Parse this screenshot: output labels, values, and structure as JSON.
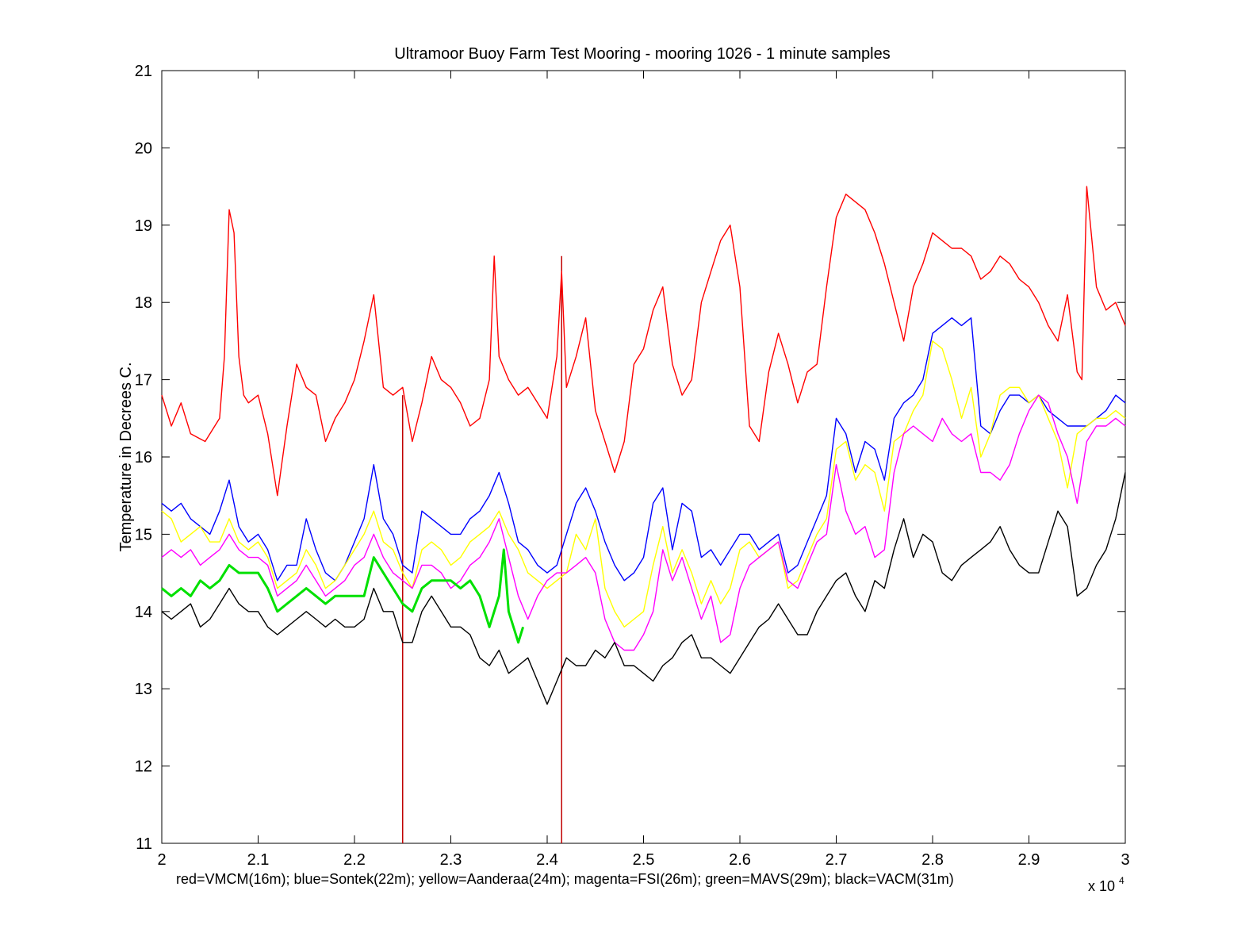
{
  "chart_data": {
    "type": "line",
    "title": "Ultramoor Buoy Farm Test Mooring - mooring 1026 - 1 minute samples",
    "ylabel": "Temperature in Decrees C.",
    "xlabel": "red=VMCM(16m); blue=Sontek(22m); yellow=Aanderaa(24m); magenta=FSI(26m); green=MAVS(29m); black=VACM(31m)",
    "x_exponent_label": "x 10",
    "x_exponent_power": "4",
    "xlim": [
      2.0,
      3.0
    ],
    "ylim": [
      11,
      21
    ],
    "xticks": [
      2.0,
      2.1,
      2.2,
      2.3,
      2.4,
      2.5,
      2.6,
      2.7,
      2.8,
      2.9,
      3.0
    ],
    "xtick_labels": [
      "2",
      "2.1",
      "2.2",
      "2.3",
      "2.4",
      "2.5",
      "2.6",
      "2.7",
      "2.8",
      "2.9",
      "3"
    ],
    "yticks": [
      11,
      12,
      13,
      14,
      15,
      16,
      17,
      18,
      19,
      20,
      21
    ],
    "ytick_labels": [
      "11",
      "12",
      "13",
      "14",
      "15",
      "16",
      "17",
      "18",
      "19",
      "20",
      "21"
    ],
    "grid": false,
    "vertical_markers": [
      {
        "x": 2.25,
        "y_range": [
          11,
          16.8
        ],
        "color": "#c00000"
      },
      {
        "x": 2.415,
        "y_range": [
          11,
          18.6
        ],
        "color": "#c00000"
      }
    ],
    "series": [
      {
        "color": "#ff0000",
        "x": [
          2.0,
          2.01,
          2.02,
          2.03,
          2.045,
          2.06,
          2.065,
          2.07,
          2.075,
          2.08,
          2.085,
          2.09,
          2.1,
          2.11,
          2.12,
          2.13,
          2.14,
          2.15,
          2.16,
          2.17,
          2.18,
          2.19,
          2.2,
          2.21,
          2.22,
          2.23,
          2.24,
          2.25,
          2.26,
          2.27,
          2.28,
          2.29,
          2.3,
          2.31,
          2.32,
          2.33,
          2.34,
          2.345,
          2.35,
          2.36,
          2.37,
          2.38,
          2.39,
          2.4,
          2.41,
          2.415,
          2.42,
          2.43,
          2.44,
          2.45,
          2.46,
          2.47,
          2.48,
          2.49,
          2.5,
          2.51,
          2.52,
          2.53,
          2.54,
          2.55,
          2.56,
          2.57,
          2.58,
          2.59,
          2.6,
          2.61,
          2.62,
          2.63,
          2.64,
          2.65,
          2.66,
          2.67,
          2.68,
          2.69,
          2.7,
          2.71,
          2.72,
          2.73,
          2.74,
          2.75,
          2.76,
          2.77,
          2.78,
          2.79,
          2.8,
          2.81,
          2.82,
          2.83,
          2.84,
          2.85,
          2.86,
          2.87,
          2.88,
          2.89,
          2.9,
          2.91,
          2.92,
          2.93,
          2.94,
          2.95,
          2.955,
          2.96,
          2.97,
          2.98,
          2.99,
          3.0
        ],
        "y": [
          16.8,
          16.4,
          16.7,
          16.3,
          16.2,
          16.5,
          17.3,
          19.2,
          18.9,
          17.3,
          16.8,
          16.7,
          16.8,
          16.3,
          15.5,
          16.4,
          17.2,
          16.9,
          16.8,
          16.2,
          16.5,
          16.7,
          17.0,
          17.5,
          18.1,
          16.9,
          16.8,
          16.9,
          16.2,
          16.7,
          17.3,
          17.0,
          16.9,
          16.7,
          16.4,
          16.5,
          17.0,
          18.6,
          17.3,
          17.0,
          16.8,
          16.9,
          16.7,
          16.5,
          17.3,
          18.4,
          16.9,
          17.3,
          17.8,
          16.6,
          16.2,
          15.8,
          16.2,
          17.2,
          17.4,
          17.9,
          18.2,
          17.2,
          16.8,
          17.0,
          18.0,
          18.4,
          18.8,
          19.0,
          18.2,
          16.4,
          16.2,
          17.1,
          17.6,
          17.2,
          16.7,
          17.1,
          17.2,
          18.2,
          19.1,
          19.4,
          19.3,
          19.2,
          18.9,
          18.5,
          18.0,
          17.5,
          18.2,
          18.5,
          18.9,
          18.8,
          18.7,
          18.7,
          18.6,
          18.3,
          18.4,
          18.6,
          18.5,
          18.3,
          18.2,
          18.0,
          17.7,
          17.5,
          18.1,
          17.1,
          17.0,
          19.5,
          18.2,
          17.9,
          18.0,
          17.7
        ]
      },
      {
        "color": "#0000ff",
        "x": [
          2.0,
          2.01,
          2.02,
          2.03,
          2.04,
          2.05,
          2.06,
          2.07,
          2.08,
          2.09,
          2.1,
          2.11,
          2.12,
          2.13,
          2.14,
          2.15,
          2.16,
          2.17,
          2.18,
          2.19,
          2.2,
          2.21,
          2.22,
          2.23,
          2.24,
          2.25,
          2.26,
          2.27,
          2.28,
          2.29,
          2.3,
          2.31,
          2.32,
          2.33,
          2.34,
          2.35,
          2.36,
          2.37,
          2.38,
          2.39,
          2.4,
          2.41,
          2.42,
          2.43,
          2.44,
          2.45,
          2.46,
          2.47,
          2.48,
          2.49,
          2.5,
          2.51,
          2.52,
          2.53,
          2.54,
          2.55,
          2.56,
          2.57,
          2.58,
          2.59,
          2.6,
          2.61,
          2.62,
          2.63,
          2.64,
          2.65,
          2.66,
          2.67,
          2.68,
          2.69,
          2.7,
          2.71,
          2.72,
          2.73,
          2.74,
          2.75,
          2.76,
          2.77,
          2.78,
          2.79,
          2.8,
          2.81,
          2.82,
          2.83,
          2.84,
          2.85,
          2.86,
          2.87,
          2.88,
          2.89,
          2.9,
          2.91,
          2.92,
          2.93,
          2.94,
          2.95,
          2.96,
          2.97,
          2.98,
          2.99,
          3.0
        ],
        "y": [
          15.4,
          15.3,
          15.4,
          15.2,
          15.1,
          15.0,
          15.3,
          15.7,
          15.1,
          14.9,
          15.0,
          14.8,
          14.4,
          14.6,
          14.6,
          15.2,
          14.8,
          14.5,
          14.4,
          14.6,
          14.9,
          15.2,
          15.9,
          15.2,
          15.0,
          14.6,
          14.5,
          15.3,
          15.2,
          15.1,
          15.0,
          15.0,
          15.2,
          15.3,
          15.5,
          15.8,
          15.4,
          14.9,
          14.8,
          14.6,
          14.5,
          14.6,
          15.0,
          15.4,
          15.6,
          15.3,
          14.9,
          14.6,
          14.4,
          14.5,
          14.7,
          15.4,
          15.6,
          14.8,
          15.4,
          15.3,
          14.7,
          14.8,
          14.6,
          14.8,
          15.0,
          15.0,
          14.8,
          14.9,
          15.0,
          14.5,
          14.6,
          14.9,
          15.2,
          15.5,
          16.5,
          16.3,
          15.8,
          16.2,
          16.1,
          15.7,
          16.5,
          16.7,
          16.8,
          17.0,
          17.6,
          17.7,
          17.8,
          17.7,
          17.8,
          16.4,
          16.3,
          16.6,
          16.8,
          16.8,
          16.7,
          16.8,
          16.6,
          16.5,
          16.4,
          16.4,
          16.4,
          16.5,
          16.6,
          16.8,
          16.7
        ]
      },
      {
        "color": "#ffff00",
        "x": [
          2.0,
          2.01,
          2.02,
          2.03,
          2.04,
          2.05,
          2.06,
          2.07,
          2.08,
          2.09,
          2.1,
          2.11,
          2.12,
          2.13,
          2.14,
          2.15,
          2.16,
          2.17,
          2.18,
          2.19,
          2.2,
          2.21,
          2.22,
          2.23,
          2.24,
          2.25,
          2.26,
          2.27,
          2.28,
          2.29,
          2.3,
          2.31,
          2.32,
          2.33,
          2.34,
          2.35,
          2.36,
          2.37,
          2.38,
          2.39,
          2.4,
          2.41,
          2.42,
          2.43,
          2.44,
          2.45,
          2.46,
          2.47,
          2.48,
          2.49,
          2.5,
          2.51,
          2.52,
          2.53,
          2.54,
          2.55,
          2.56,
          2.57,
          2.58,
          2.59,
          2.6,
          2.61,
          2.62,
          2.63,
          2.64,
          2.65,
          2.66,
          2.67,
          2.68,
          2.69,
          2.7,
          2.71,
          2.72,
          2.73,
          2.74,
          2.75,
          2.76,
          2.77,
          2.78,
          2.79,
          2.8,
          2.81,
          2.82,
          2.83,
          2.84,
          2.85,
          2.86,
          2.87,
          2.88,
          2.89,
          2.9,
          2.91,
          2.92,
          2.93,
          2.94,
          2.95,
          2.96,
          2.97,
          2.98,
          2.99,
          3.0
        ],
        "y": [
          15.3,
          15.2,
          14.9,
          15.0,
          15.1,
          14.9,
          14.9,
          15.2,
          14.9,
          14.8,
          14.9,
          14.7,
          14.3,
          14.4,
          14.5,
          14.8,
          14.6,
          14.3,
          14.4,
          14.6,
          14.8,
          15.0,
          15.3,
          14.9,
          14.8,
          14.5,
          14.3,
          14.8,
          14.9,
          14.8,
          14.6,
          14.7,
          14.9,
          15.0,
          15.1,
          15.3,
          15.0,
          14.8,
          14.5,
          14.4,
          14.3,
          14.4,
          14.5,
          15.0,
          14.8,
          15.2,
          14.3,
          14.0,
          13.8,
          13.9,
          14.0,
          14.6,
          15.1,
          14.5,
          14.8,
          14.5,
          14.1,
          14.4,
          14.1,
          14.3,
          14.8,
          14.9,
          14.7,
          14.8,
          14.9,
          14.3,
          14.4,
          14.7,
          15.0,
          15.2,
          16.1,
          16.2,
          15.7,
          15.9,
          15.8,
          15.3,
          16.2,
          16.3,
          16.6,
          16.8,
          17.5,
          17.4,
          17.0,
          16.5,
          16.9,
          16.0,
          16.3,
          16.8,
          16.9,
          16.9,
          16.7,
          16.8,
          16.5,
          16.2,
          15.6,
          16.3,
          16.4,
          16.5,
          16.5,
          16.6,
          16.5
        ]
      },
      {
        "color": "#ff00ff",
        "x": [
          2.0,
          2.01,
          2.02,
          2.03,
          2.04,
          2.05,
          2.06,
          2.07,
          2.08,
          2.09,
          2.1,
          2.11,
          2.12,
          2.13,
          2.14,
          2.15,
          2.16,
          2.17,
          2.18,
          2.19,
          2.2,
          2.21,
          2.22,
          2.23,
          2.24,
          2.25,
          2.26,
          2.27,
          2.28,
          2.29,
          2.3,
          2.31,
          2.32,
          2.33,
          2.34,
          2.35,
          2.36,
          2.37,
          2.38,
          2.39,
          2.4,
          2.41,
          2.42,
          2.43,
          2.44,
          2.45,
          2.46,
          2.47,
          2.48,
          2.49,
          2.5,
          2.51,
          2.52,
          2.53,
          2.54,
          2.55,
          2.56,
          2.57,
          2.58,
          2.59,
          2.6,
          2.61,
          2.62,
          2.63,
          2.64,
          2.65,
          2.66,
          2.67,
          2.68,
          2.69,
          2.7,
          2.71,
          2.72,
          2.73,
          2.74,
          2.75,
          2.76,
          2.77,
          2.78,
          2.79,
          2.8,
          2.81,
          2.82,
          2.83,
          2.84,
          2.85,
          2.86,
          2.87,
          2.88,
          2.89,
          2.9,
          2.91,
          2.92,
          2.93,
          2.94,
          2.95,
          2.96,
          2.97,
          2.98,
          2.99,
          3.0
        ],
        "y": [
          14.7,
          14.8,
          14.7,
          14.8,
          14.6,
          14.7,
          14.8,
          15.0,
          14.8,
          14.7,
          14.7,
          14.6,
          14.2,
          14.3,
          14.4,
          14.6,
          14.4,
          14.2,
          14.3,
          14.4,
          14.6,
          14.7,
          15.0,
          14.7,
          14.5,
          14.4,
          14.3,
          14.6,
          14.6,
          14.5,
          14.3,
          14.4,
          14.6,
          14.7,
          14.9,
          15.2,
          14.7,
          14.2,
          13.9,
          14.2,
          14.4,
          14.5,
          14.5,
          14.6,
          14.7,
          14.5,
          13.9,
          13.6,
          13.5,
          13.5,
          13.7,
          14.0,
          14.8,
          14.4,
          14.7,
          14.3,
          13.9,
          14.2,
          13.6,
          13.7,
          14.3,
          14.6,
          14.7,
          14.8,
          14.9,
          14.4,
          14.3,
          14.6,
          14.9,
          15.0,
          15.9,
          15.3,
          15.0,
          15.1,
          14.7,
          14.8,
          15.8,
          16.3,
          16.4,
          16.3,
          16.2,
          16.5,
          16.3,
          16.2,
          16.3,
          15.8,
          15.8,
          15.7,
          15.9,
          16.3,
          16.6,
          16.8,
          16.7,
          16.3,
          16.0,
          15.4,
          16.2,
          16.4,
          16.4,
          16.5,
          16.4
        ]
      },
      {
        "color": "#00e000",
        "x": [
          2.0,
          2.01,
          2.02,
          2.03,
          2.04,
          2.05,
          2.06,
          2.07,
          2.08,
          2.09,
          2.1,
          2.11,
          2.12,
          2.13,
          2.14,
          2.15,
          2.16,
          2.17,
          2.18,
          2.19,
          2.2,
          2.21,
          2.22,
          2.23,
          2.24,
          2.25,
          2.26,
          2.27,
          2.28,
          2.29,
          2.3,
          2.31,
          2.32,
          2.33,
          2.34,
          2.35,
          2.355,
          2.36,
          2.37,
          2.375
        ],
        "y": [
          14.3,
          14.2,
          14.3,
          14.2,
          14.4,
          14.3,
          14.4,
          14.6,
          14.5,
          14.5,
          14.5,
          14.3,
          14.0,
          14.1,
          14.2,
          14.3,
          14.2,
          14.1,
          14.2,
          14.2,
          14.2,
          14.2,
          14.7,
          14.5,
          14.3,
          14.1,
          14.0,
          14.3,
          14.4,
          14.4,
          14.4,
          14.3,
          14.4,
          14.2,
          13.8,
          14.2,
          14.8,
          14.0,
          13.6,
          13.8
        ]
      },
      {
        "color": "#000000",
        "x": [
          2.0,
          2.01,
          2.02,
          2.03,
          2.04,
          2.05,
          2.06,
          2.07,
          2.08,
          2.09,
          2.1,
          2.11,
          2.12,
          2.13,
          2.14,
          2.15,
          2.16,
          2.17,
          2.18,
          2.19,
          2.2,
          2.21,
          2.22,
          2.23,
          2.24,
          2.25,
          2.26,
          2.27,
          2.28,
          2.29,
          2.3,
          2.31,
          2.32,
          2.33,
          2.34,
          2.35,
          2.36,
          2.37,
          2.38,
          2.39,
          2.4,
          2.41,
          2.42,
          2.43,
          2.44,
          2.45,
          2.46,
          2.47,
          2.48,
          2.49,
          2.5,
          2.51,
          2.52,
          2.53,
          2.54,
          2.55,
          2.56,
          2.57,
          2.58,
          2.59,
          2.6,
          2.61,
          2.62,
          2.63,
          2.64,
          2.65,
          2.66,
          2.67,
          2.68,
          2.69,
          2.7,
          2.71,
          2.72,
          2.73,
          2.74,
          2.75,
          2.76,
          2.77,
          2.78,
          2.79,
          2.8,
          2.81,
          2.82,
          2.83,
          2.84,
          2.85,
          2.86,
          2.87,
          2.88,
          2.89,
          2.9,
          2.91,
          2.92,
          2.93,
          2.94,
          2.95,
          2.96,
          2.97,
          2.98,
          2.99,
          3.0
        ],
        "y": [
          14.0,
          13.9,
          14.0,
          14.1,
          13.8,
          13.9,
          14.1,
          14.3,
          14.1,
          14.0,
          14.0,
          13.8,
          13.7,
          13.8,
          13.9,
          14.0,
          13.9,
          13.8,
          13.9,
          13.8,
          13.8,
          13.9,
          14.3,
          14.0,
          14.0,
          13.6,
          13.6,
          14.0,
          14.2,
          14.0,
          13.8,
          13.8,
          13.7,
          13.4,
          13.3,
          13.5,
          13.2,
          13.3,
          13.4,
          13.1,
          12.8,
          13.1,
          13.4,
          13.3,
          13.3,
          13.5,
          13.4,
          13.6,
          13.3,
          13.3,
          13.2,
          13.1,
          13.3,
          13.4,
          13.6,
          13.7,
          13.4,
          13.4,
          13.3,
          13.2,
          13.4,
          13.6,
          13.8,
          13.9,
          14.1,
          13.9,
          13.7,
          13.7,
          14.0,
          14.2,
          14.4,
          14.5,
          14.2,
          14.0,
          14.4,
          14.3,
          14.8,
          15.2,
          14.7,
          15.0,
          14.9,
          14.5,
          14.4,
          14.6,
          14.7,
          14.8,
          14.9,
          15.1,
          14.8,
          14.6,
          14.5,
          14.5,
          14.9,
          15.3,
          15.1,
          14.2,
          14.3,
          14.6,
          14.8,
          15.2,
          15.8
        ]
      }
    ]
  }
}
